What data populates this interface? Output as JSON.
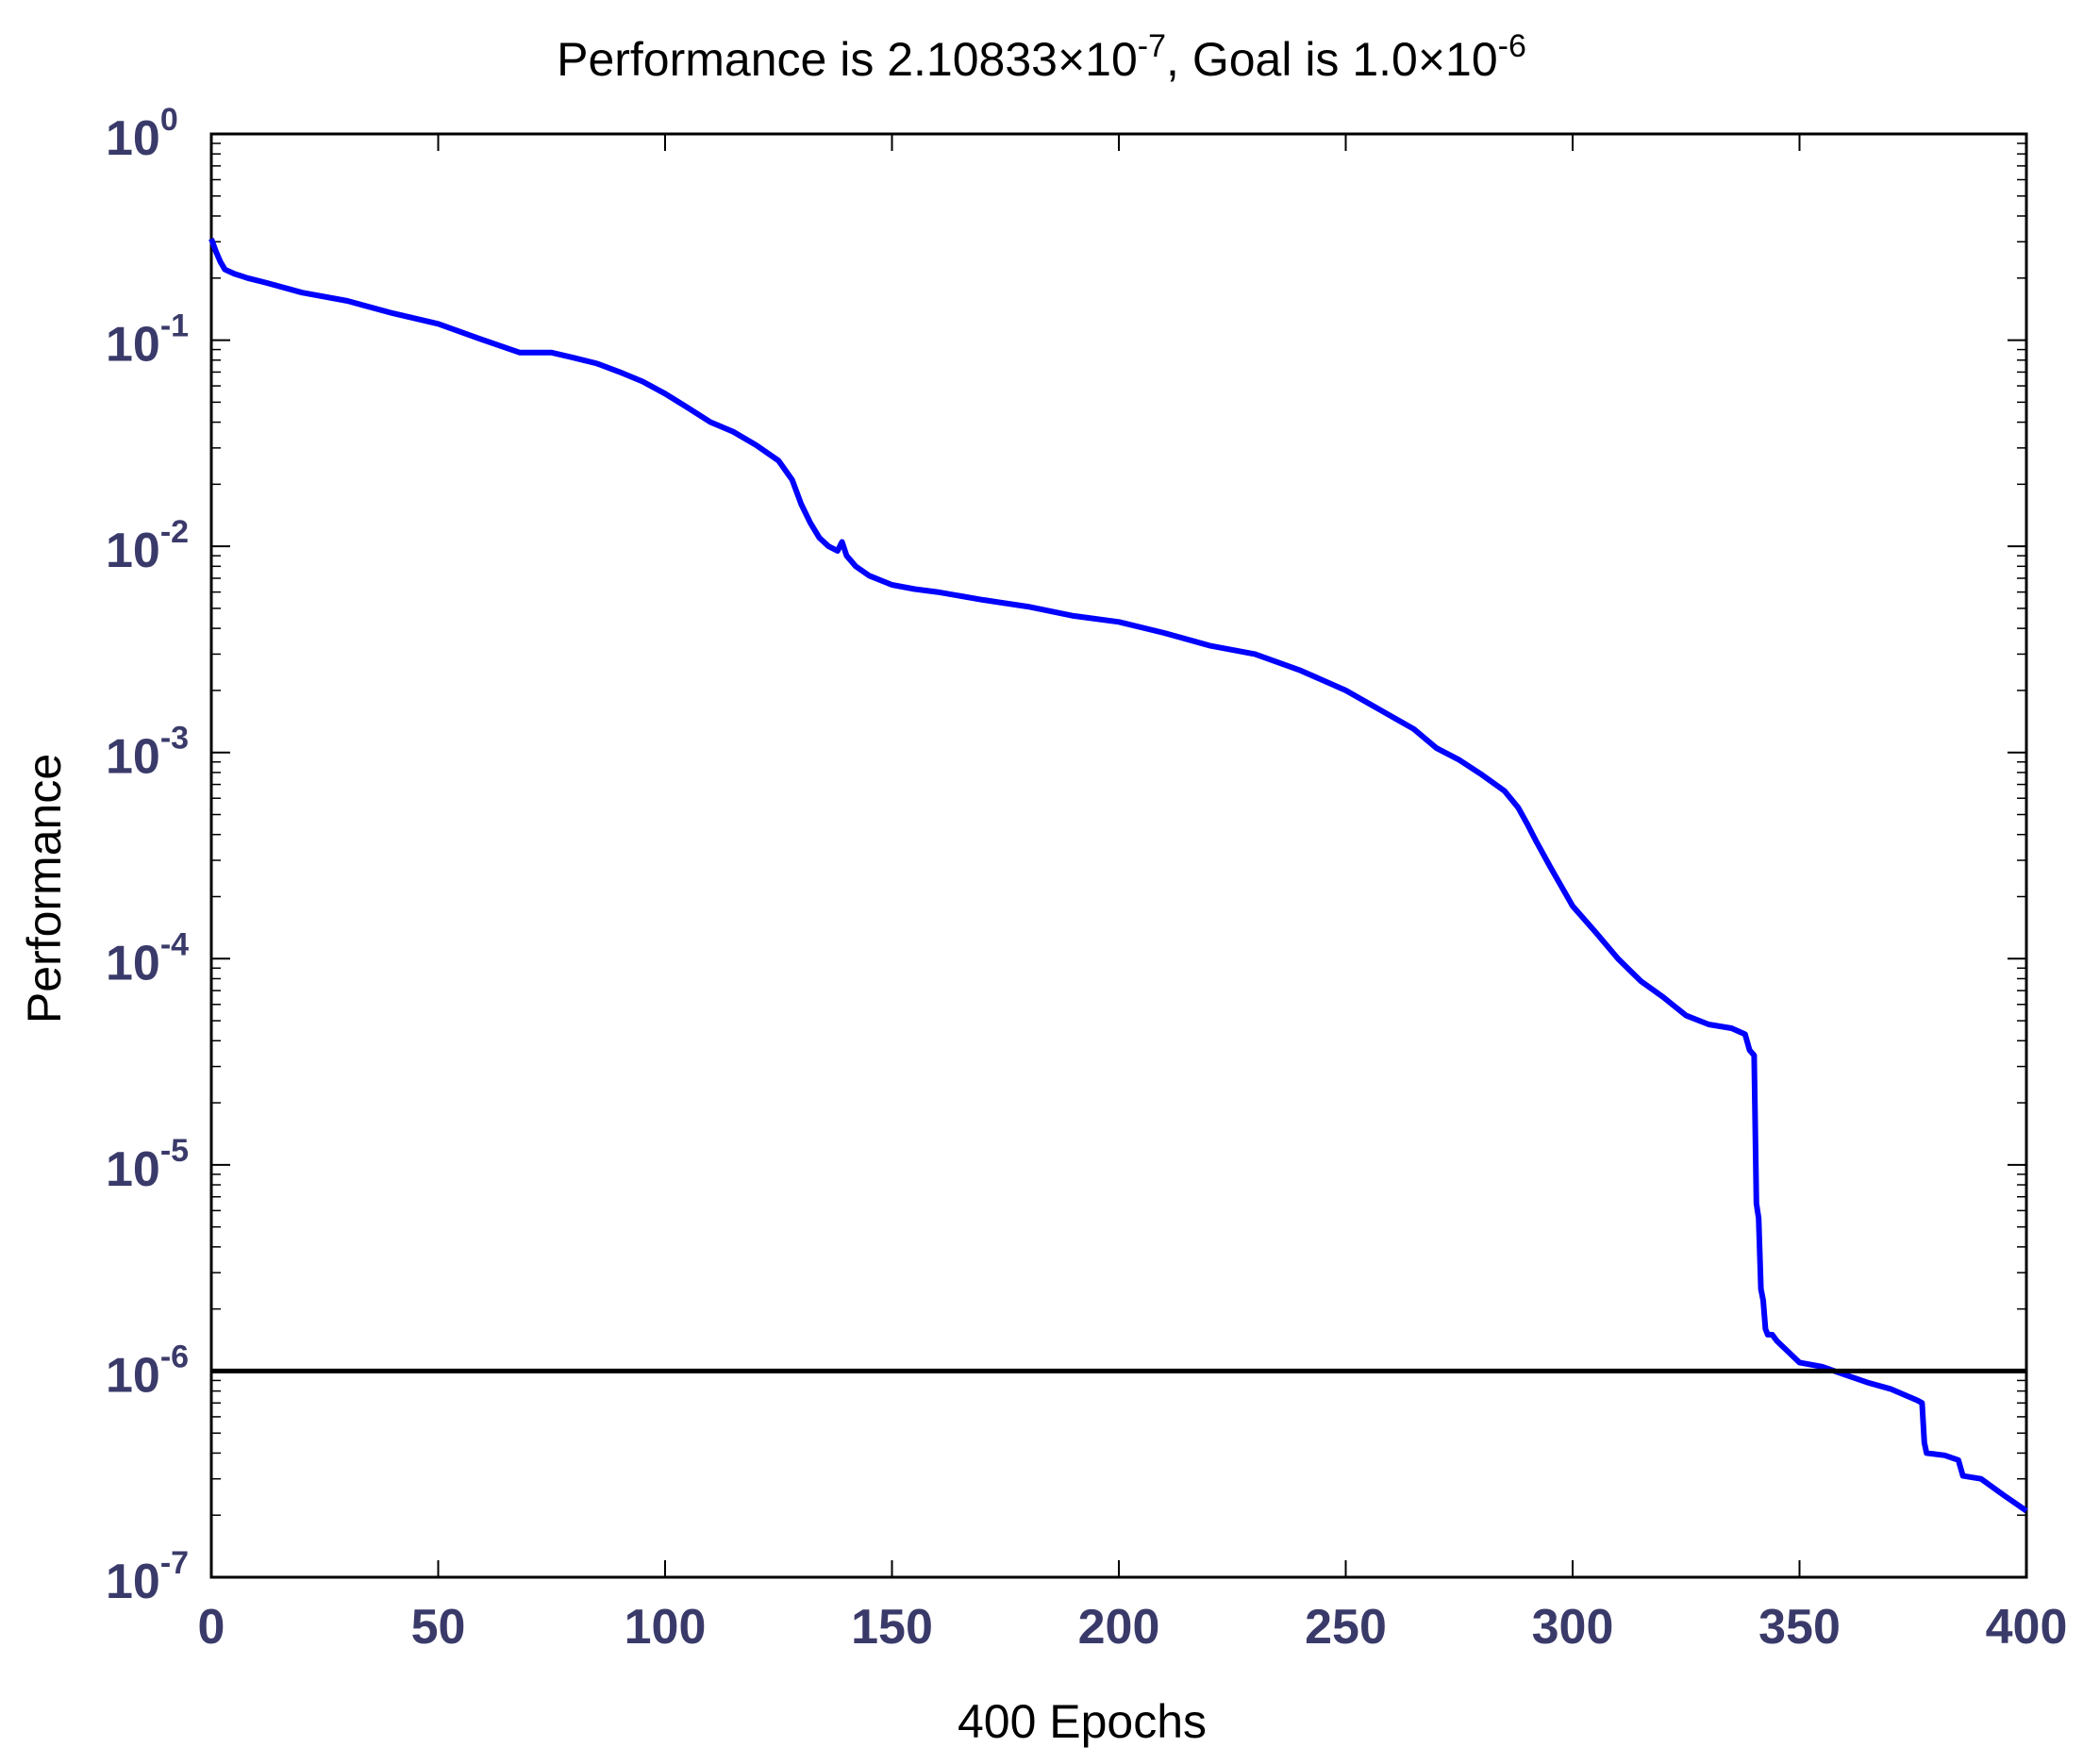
{
  "chart_data": {
    "type": "line",
    "title": {
      "prefix": "Performance is 2.10833×10",
      "perf_exponent": "-7",
      "middle": ",  Goal is 1.0×10",
      "goal_exponent": "-6"
    },
    "xlabel": "400 Epochs",
    "ylabel": "Performance",
    "xlim": [
      0,
      400
    ],
    "ylim": [
      1e-07,
      1
    ],
    "y_scale": "log",
    "grid": false,
    "legend": "none",
    "x_ticks": [
      0,
      50,
      100,
      150,
      200,
      250,
      300,
      350,
      400
    ],
    "y_ticks": [
      {
        "value": 1,
        "base": "10",
        "exp": "0"
      },
      {
        "value": 0.1,
        "base": "10",
        "exp": "-1"
      },
      {
        "value": 0.01,
        "base": "10",
        "exp": "-2"
      },
      {
        "value": 0.001,
        "base": "10",
        "exp": "-3"
      },
      {
        "value": 0.0001,
        "base": "10",
        "exp": "-4"
      },
      {
        "value": 1e-05,
        "base": "10",
        "exp": "-5"
      },
      {
        "value": 1e-06,
        "base": "10",
        "exp": "-6"
      },
      {
        "value": 1e-07,
        "base": "10",
        "exp": "-7"
      }
    ],
    "series": [
      {
        "color": "#0000ff",
        "x": [
          0,
          1,
          2,
          3,
          5,
          8,
          12,
          20,
          30,
          40,
          50,
          60,
          68,
          75,
          80,
          85,
          90,
          95,
          100,
          105,
          110,
          115,
          120,
          125,
          128,
          130,
          132,
          134,
          136,
          138,
          139,
          140,
          141,
          142,
          145,
          150,
          155,
          160,
          170,
          180,
          190,
          200,
          210,
          220,
          230,
          240,
          250,
          260,
          265,
          270,
          275,
          280,
          285,
          288,
          290,
          292,
          295,
          300,
          305,
          310,
          315,
          320,
          325,
          330,
          335,
          338,
          339,
          340,
          340.5,
          341,
          341.5,
          342,
          342.5,
          343,
          344,
          345,
          350,
          355,
          360,
          365,
          370,
          376,
          377,
          377.5,
          378,
          382,
          385,
          386,
          390,
          395,
          400
        ],
        "y": [
          0.31,
          0.27,
          0.24,
          0.22,
          0.21,
          0.2,
          0.19,
          0.17,
          0.155,
          0.135,
          0.12,
          0.1,
          0.087,
          0.087,
          0.082,
          0.077,
          0.07,
          0.063,
          0.055,
          0.047,
          0.04,
          0.036,
          0.031,
          0.026,
          0.021,
          0.016,
          0.013,
          0.011,
          0.01,
          0.0095,
          0.0105,
          0.009,
          0.0085,
          0.008,
          0.0072,
          0.0065,
          0.0062,
          0.006,
          0.0055,
          0.0051,
          0.0046,
          0.0043,
          0.0038,
          0.0033,
          0.003,
          0.0025,
          0.002,
          0.0015,
          0.0013,
          0.00105,
          0.00092,
          0.00078,
          0.00065,
          0.00054,
          0.00045,
          0.00037,
          0.00028,
          0.00018,
          0.000135,
          0.0001,
          7.8e-05,
          6.5e-05,
          5.3e-05,
          4.8e-05,
          4.6e-05,
          4.3e-05,
          3.6e-05,
          3.4e-05,
          6.5e-06,
          5.5e-06,
          2.5e-06,
          2.2e-06,
          1.6e-06,
          1.5e-06,
          1.5e-06,
          1.4e-06,
          1.1e-06,
          1.05e-06,
          9.6e-07,
          8.8e-07,
          8.2e-07,
          7.2e-07,
          7e-07,
          4.5e-07,
          4e-07,
          3.9e-07,
          3.7e-07,
          3.1e-07,
          3e-07,
          2.5e-07,
          2.1e-07
        ]
      },
      {
        "color": "#000000",
        "x": [
          0,
          400
        ],
        "y": [
          1e-06,
          1e-06
        ]
      }
    ]
  }
}
